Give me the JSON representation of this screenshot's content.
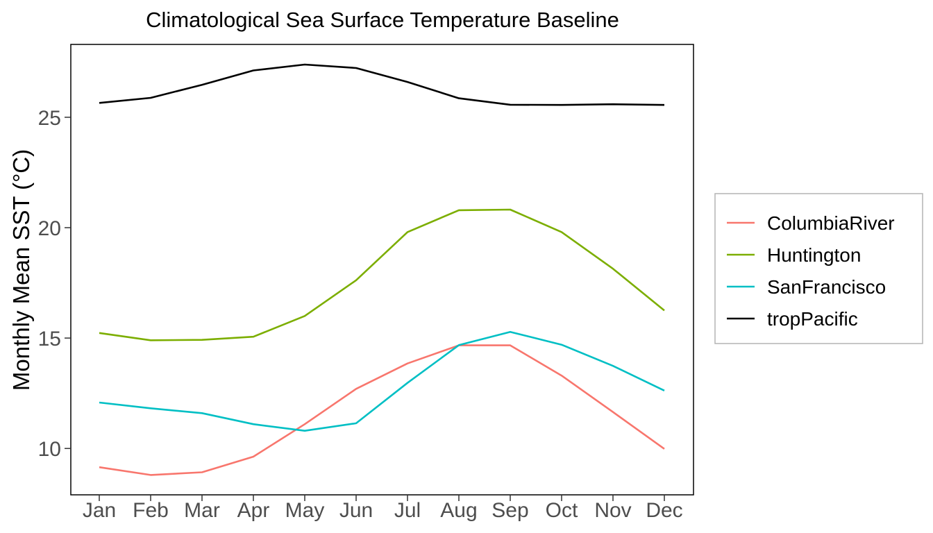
{
  "chart_data": {
    "type": "line",
    "title": "Climatological Sea Surface Temperature Baseline",
    "xlabel": "",
    "ylabel": "Monthly Mean SST (°C)",
    "categories": [
      "Jan",
      "Feb",
      "Mar",
      "Apr",
      "May",
      "Jun",
      "Jul",
      "Aug",
      "Sep",
      "Oct",
      "Nov",
      "Dec"
    ],
    "ylim": [
      7.9,
      28.3
    ],
    "yticks": [
      "10",
      "15",
      "20",
      "25"
    ],
    "grid": false,
    "legend_position": "right",
    "series": [
      {
        "name": "ColumbiaRiver",
        "color": "#F8766D",
        "values": [
          9.15,
          8.8,
          8.92,
          9.63,
          11.1,
          12.7,
          13.85,
          14.67,
          14.67,
          13.3,
          11.65,
          9.98
        ]
      },
      {
        "name": "Huntington",
        "color": "#7CAE00",
        "values": [
          15.23,
          14.9,
          14.92,
          15.06,
          16.0,
          17.62,
          19.8,
          20.79,
          20.82,
          19.8,
          18.14,
          16.25
        ]
      },
      {
        "name": "SanFrancisco",
        "color": "#00BFC4",
        "values": [
          12.08,
          11.82,
          11.6,
          11.1,
          10.8,
          11.14,
          12.97,
          14.68,
          15.28,
          14.7,
          13.74,
          12.62
        ]
      },
      {
        "name": "tropPacific",
        "color": "#000000",
        "values": [
          25.65,
          25.88,
          26.47,
          27.12,
          27.39,
          27.23,
          26.6,
          25.86,
          25.57,
          25.56,
          25.59,
          25.56
        ]
      }
    ]
  }
}
